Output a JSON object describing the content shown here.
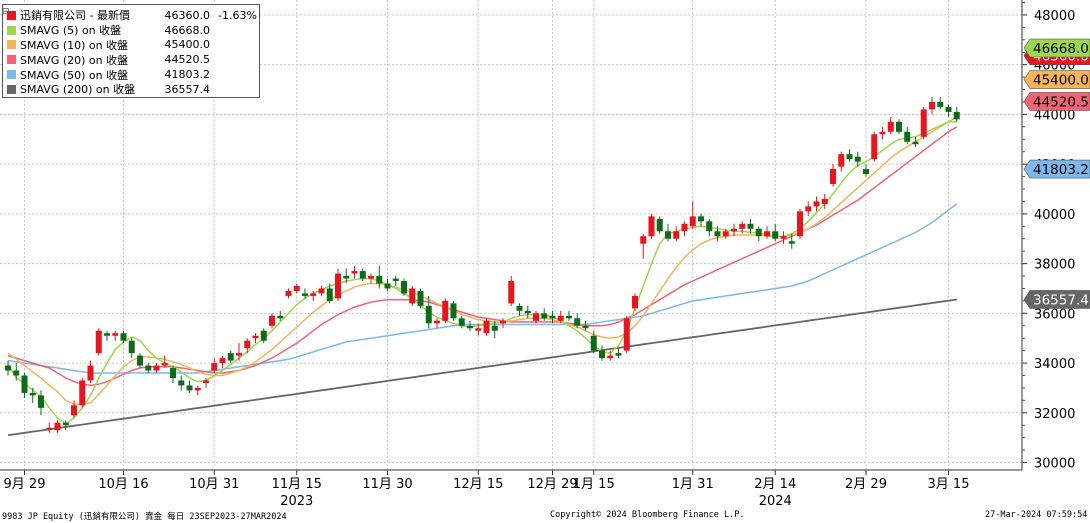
{
  "legend": {
    "rows": [
      {
        "name": "迅銷有限公司 - 最新價",
        "value": "46360.0",
        "change": "-1.63%",
        "color": "#e8141e"
      },
      {
        "name": "SMAVG (5)  on 收盤",
        "value": "46668.0",
        "color": "#9bd84a"
      },
      {
        "name": "SMAVG (10)  on 收盤",
        "value": "45400.0",
        "color": "#f5b45a"
      },
      {
        "name": "SMAVG (20)  on 收盤",
        "value": "44520.5",
        "color": "#f06476"
      },
      {
        "name": "SMAVG (50)  on 收盤",
        "value": "41803.2",
        "color": "#7ab8ee"
      },
      {
        "name": "SMAVG (200)  on 收盤",
        "value": "36557.4",
        "color": "#666666"
      }
    ]
  },
  "footer": {
    "left": "9983 JP Equity (迅銷有限公司) 賣金  每日 23SEP2023-27MAR2024",
    "center": "Copyright© 2024 Bloomberg Finance L.P.",
    "right": "27-Mar-2024 07:59:54"
  },
  "chart_data": {
    "type": "candlestick",
    "ylim": [
      29700,
      48600
    ],
    "y_ticks": [
      30000,
      32000,
      34000,
      36000,
      38000,
      40000,
      42000,
      44000,
      46000,
      48000
    ],
    "x_ticks": [
      {
        "label": "9月 29",
        "day": 2
      },
      {
        "label": "10月 16",
        "day": 14
      },
      {
        "label": "10月 31",
        "day": 25
      },
      {
        "label": "11月 15",
        "day": 35
      },
      {
        "label": "11月 30",
        "day": 46
      },
      {
        "label": "12月 15",
        "day": 57
      },
      {
        "label": "12月 29",
        "day": 66
      },
      {
        "label": "1月 15",
        "day": 71
      },
      {
        "label": "1月 31",
        "day": 83
      },
      {
        "label": "2月 14",
        "day": 93
      },
      {
        "label": "2月 29",
        "day": 104
      },
      {
        "label": "3月 15",
        "day": 114
      }
    ],
    "year_labels": [
      {
        "label": "2023",
        "day": 35
      },
      {
        "label": "2024",
        "day": 93
      }
    ],
    "price_tags": [
      {
        "label": "46360.0",
        "value": 46360,
        "bg": "#e8141e",
        "fg": "#ffffff"
      },
      {
        "label": "46668.0",
        "value": 46668,
        "bg": "#9bd84a",
        "fg": "#000000"
      },
      {
        "label": "45400.0",
        "value": 45400,
        "bg": "#f5b45a",
        "fg": "#000000"
      },
      {
        "label": "44520.5",
        "value": 44520,
        "bg": "#f06476",
        "fg": "#000000"
      },
      {
        "label": "41803.2",
        "value": 41803,
        "bg": "#7ab8ee",
        "fg": "#000000"
      },
      {
        "label": "36557.4",
        "value": 36557,
        "bg": "#666666",
        "fg": "#ffffff"
      }
    ],
    "candles": [
      [
        33900,
        34100,
        33500,
        33700
      ],
      [
        33700,
        34000,
        33300,
        33500
      ],
      [
        33500,
        33600,
        32600,
        32800
      ],
      [
        32800,
        33000,
        32400,
        32700
      ],
      [
        32700,
        32900,
        31900,
        32200
      ],
      [
        31400,
        31600,
        31200,
        31400
      ],
      [
        31300,
        31700,
        31200,
        31600
      ],
      [
        31600,
        31700,
        31300,
        31500
      ],
      [
        31900,
        32500,
        31800,
        32300
      ],
      [
        32300,
        33400,
        32200,
        33300
      ],
      [
        33300,
        34100,
        33200,
        33900
      ],
      [
        34400,
        35400,
        34300,
        35300
      ],
      [
        35200,
        35300,
        34900,
        35100
      ],
      [
        35100,
        35300,
        34900,
        35200
      ],
      [
        35200,
        35300,
        34800,
        34900
      ],
      [
        34900,
        35000,
        34200,
        34400
      ],
      [
        34300,
        34400,
        33800,
        33900
      ],
      [
        33900,
        34000,
        33600,
        33700
      ],
      [
        33700,
        34000,
        33600,
        33900
      ],
      [
        33900,
        34300,
        33800,
        34000
      ],
      [
        33800,
        33900,
        33200,
        33400
      ],
      [
        33300,
        33500,
        32900,
        33100
      ],
      [
        33100,
        33300,
        32800,
        32900
      ],
      [
        32900,
        33100,
        32700,
        33000
      ],
      [
        33200,
        33400,
        33000,
        33300
      ],
      [
        33700,
        34200,
        33600,
        34000
      ],
      [
        34000,
        34300,
        33800,
        34200
      ],
      [
        34400,
        34500,
        34000,
        34100
      ],
      [
        34300,
        34800,
        34100,
        34400
      ],
      [
        34600,
        35000,
        34400,
        34900
      ],
      [
        35000,
        35200,
        34800,
        35100
      ],
      [
        35300,
        35400,
        34800,
        34900
      ],
      [
        35500,
        36000,
        35400,
        35900
      ],
      [
        35900,
        36100,
        35700,
        35800
      ],
      [
        36700,
        37000,
        36600,
        36900
      ],
      [
        36900,
        37200,
        36800,
        37100
      ],
      [
        36800,
        37000,
        36600,
        36700
      ],
      [
        36700,
        36900,
        36500,
        36800
      ],
      [
        36800,
        37100,
        36700,
        37000
      ],
      [
        37000,
        37200,
        36400,
        36500
      ],
      [
        36600,
        37800,
        36500,
        37600
      ],
      [
        37500,
        37800,
        37200,
        37400
      ],
      [
        37600,
        37900,
        37400,
        37700
      ],
      [
        37700,
        37800,
        37300,
        37400
      ],
      [
        37400,
        37600,
        37200,
        37500
      ],
      [
        37500,
        37900,
        37000,
        37200
      ],
      [
        37200,
        37400,
        36900,
        37000
      ],
      [
        37400,
        37500,
        37100,
        37300
      ],
      [
        37300,
        37400,
        36700,
        36800
      ],
      [
        36400,
        37100,
        36300,
        37000
      ],
      [
        36900,
        37000,
        36200,
        36300
      ],
      [
        36300,
        36700,
        35400,
        35600
      ],
      [
        35600,
        35800,
        35400,
        35700
      ],
      [
        35700,
        36600,
        35600,
        36500
      ],
      [
        36400,
        36500,
        35700,
        35800
      ],
      [
        35800,
        35900,
        35400,
        35500
      ],
      [
        35500,
        35700,
        35300,
        35400
      ],
      [
        35300,
        35600,
        35100,
        35400
      ],
      [
        35200,
        35800,
        35100,
        35700
      ],
      [
        35500,
        35700,
        35000,
        35300
      ],
      [
        35600,
        35800,
        35400,
        35700
      ],
      [
        36400,
        37500,
        36300,
        37300
      ],
      [
        36300,
        36400,
        35900,
        36100
      ],
      [
        36100,
        36300,
        35800,
        36000
      ],
      [
        35700,
        36100,
        35600,
        36000
      ],
      [
        36000,
        36200,
        35700,
        35800
      ],
      [
        35900,
        36100,
        35600,
        35800
      ],
      [
        35700,
        36100,
        35600,
        35900
      ],
      [
        35900,
        36100,
        35700,
        35800
      ],
      [
        35800,
        36000,
        35400,
        35500
      ],
      [
        35500,
        35700,
        35300,
        35400
      ],
      [
        35100,
        35300,
        34400,
        34500
      ],
      [
        34500,
        34700,
        34100,
        34200
      ],
      [
        34200,
        34500,
        34100,
        34300
      ],
      [
        34400,
        34600,
        34200,
        34300
      ],
      [
        34500,
        35900,
        34400,
        35800
      ],
      [
        36200,
        36800,
        36100,
        36700
      ],
      [
        38800,
        39200,
        38200,
        39100
      ],
      [
        39100,
        40000,
        39000,
        39900
      ],
      [
        39800,
        39900,
        39200,
        39300
      ],
      [
        39300,
        39600,
        38900,
        39000
      ],
      [
        39000,
        39500,
        38900,
        39300
      ],
      [
        39300,
        39700,
        39100,
        39600
      ],
      [
        39500,
        40500,
        39400,
        39900
      ],
      [
        39900,
        40000,
        39500,
        39700
      ],
      [
        39700,
        39800,
        39100,
        39300
      ],
      [
        39300,
        39500,
        38900,
        39100
      ],
      [
        39100,
        39400,
        39000,
        39300
      ],
      [
        39300,
        39600,
        39100,
        39400
      ],
      [
        39400,
        39700,
        39200,
        39600
      ],
      [
        39600,
        39800,
        39200,
        39400
      ],
      [
        39400,
        39500,
        38900,
        39100
      ],
      [
        39100,
        39500,
        39000,
        39300
      ],
      [
        39300,
        39600,
        38900,
        39000
      ],
      [
        39000,
        39300,
        38800,
        39100
      ],
      [
        38900,
        39200,
        38600,
        38800
      ],
      [
        39100,
        40200,
        39000,
        40100
      ],
      [
        40100,
        40500,
        39900,
        40300
      ],
      [
        40300,
        40700,
        40100,
        40500
      ],
      [
        40400,
        40800,
        40200,
        40600
      ],
      [
        41200,
        42000,
        41100,
        41800
      ],
      [
        41900,
        42500,
        41700,
        42400
      ],
      [
        42400,
        42600,
        42100,
        42200
      ],
      [
        42300,
        42500,
        41900,
        42100
      ],
      [
        41800,
        42000,
        41500,
        41600
      ],
      [
        42200,
        43300,
        42100,
        43200
      ],
      [
        43200,
        43500,
        43000,
        43300
      ],
      [
        43300,
        43900,
        43200,
        43700
      ],
      [
        43700,
        43800,
        43200,
        43300
      ],
      [
        43300,
        43500,
        42800,
        42900
      ],
      [
        42900,
        43100,
        42700,
        42800
      ],
      [
        43100,
        44300,
        43000,
        44200
      ],
      [
        44200,
        44700,
        44000,
        44500
      ],
      [
        44500,
        44700,
        44200,
        44300
      ],
      [
        44300,
        44400,
        43900,
        44100
      ],
      [
        44100,
        44300,
        43700,
        43800
      ]
    ],
    "ma5": [
      33950,
      33400,
      33200,
      32900,
      32650,
      32200,
      31800,
      31550,
      31800,
      32200,
      32700,
      33400,
      34000,
      34550,
      34850,
      35050,
      34900,
      34500,
      34200,
      34000,
      33850,
      33650,
      33400,
      33250,
      33300,
      33500,
      33700,
      33950,
      34200,
      34450,
      34750,
      35000,
      35300,
      35650,
      36000,
      36350,
      36600,
      36800,
      36950,
      37100,
      37200,
      37300,
      37350,
      37400,
      37400,
      37300,
      37150,
      37000,
      36800,
      36600,
      36300,
      36050,
      35850,
      35700,
      35600,
      35500,
      35450,
      35500,
      35550,
      35600,
      35650,
      35800,
      35900,
      35950,
      35950,
      35950,
      35850,
      35700,
      35500,
      35300,
      35000,
      34700,
      34450,
      34400,
      34700,
      35300,
      36200,
      37100,
      38000,
      38800,
      39200,
      39300,
      39400,
      39450,
      39500,
      39450,
      39400,
      39350,
      39300,
      39300,
      39250,
      39250,
      39150,
      39100,
      39100,
      39200,
      39400,
      39700,
      40050,
      40400,
      40800,
      41250,
      41650,
      41950,
      42100,
      42300,
      42550,
      42800,
      43000,
      43050,
      43100,
      43250,
      43400,
      43550,
      43700,
      43700
    ],
    "ma10": [
      34400,
      34150,
      33900,
      33650,
      33400,
      33100,
      32850,
      32500,
      32350,
      32350,
      32400,
      32750,
      33100,
      33500,
      33850,
      34100,
      34250,
      34250,
      34200,
      34150,
      34050,
      33950,
      33800,
      33650,
      33550,
      33500,
      33500,
      33600,
      33700,
      33850,
      34050,
      34300,
      34550,
      34850,
      35150,
      35450,
      35750,
      36050,
      36300,
      36550,
      36750,
      36900,
      37050,
      37150,
      37200,
      37200,
      37150,
      37050,
      36950,
      36850,
      36700,
      36550,
      36400,
      36250,
      36100,
      35950,
      35850,
      35750,
      35700,
      35650,
      35650,
      35700,
      35750,
      35800,
      35800,
      35800,
      35750,
      35650,
      35550,
      35450,
      35300,
      35150,
      35050,
      35000,
      35050,
      35200,
      35500,
      35900,
      36400,
      36900,
      37400,
      37850,
      38250,
      38550,
      38800,
      38950,
      39050,
      39100,
      39150,
      39150,
      39150,
      39150,
      39100,
      39100,
      39100,
      39150,
      39250,
      39400,
      39600,
      39850,
      40150,
      40450,
      40750,
      41050,
      41350,
      41650,
      41950,
      42250,
      42500,
      42700,
      42900,
      43100,
      43300,
      43500,
      43700,
      43900
    ],
    "ma20": [
      34300,
      34200,
      34100,
      34000,
      33900,
      33800,
      33600,
      33400,
      33250,
      33150,
      33100,
      33150,
      33250,
      33400,
      33550,
      33700,
      33800,
      33850,
      33850,
      33850,
      33850,
      33800,
      33750,
      33700,
      33650,
      33600,
      33600,
      33650,
      33700,
      33800,
      33900,
      34050,
      34200,
      34400,
      34600,
      34800,
      35050,
      35300,
      35550,
      35750,
      35950,
      36100,
      36250,
      36350,
      36450,
      36500,
      36550,
      36550,
      36550,
      36550,
      36500,
      36450,
      36350,
      36250,
      36150,
      36050,
      35950,
      35850,
      35800,
      35750,
      35700,
      35650,
      35650,
      35650,
      35650,
      35650,
      35650,
      35650,
      35600,
      35550,
      35500,
      35500,
      35500,
      35550,
      35650,
      35800,
      35950,
      36150,
      36350,
      36550,
      36750,
      36950,
      37150,
      37300,
      37450,
      37600,
      37750,
      37900,
      38050,
      38200,
      38350,
      38500,
      38650,
      38800,
      38950,
      39100,
      39250,
      39400,
      39550,
      39750,
      39950,
      40150,
      40350,
      40550,
      40800,
      41050,
      41300,
      41550,
      41800,
      42050,
      42300,
      42550,
      42800,
      43050,
      43300,
      43500
    ],
    "ma50": [
      34100,
      34050,
      34000,
      33950,
      33900,
      33850,
      33800,
      33750,
      33700,
      33650,
      33600,
      33600,
      33600,
      33600,
      33600,
      33600,
      33600,
      33600,
      33600,
      33600,
      33600,
      33600,
      33600,
      33600,
      33650,
      33700,
      33750,
      33800,
      33850,
      33900,
      33950,
      34000,
      34050,
      34100,
      34150,
      34250,
      34350,
      34450,
      34550,
      34650,
      34750,
      34850,
      34900,
      34950,
      35000,
      35050,
      35100,
      35150,
      35200,
      35250,
      35300,
      35350,
      35400,
      35450,
      35500,
      35550,
      35550,
      35550,
      35550,
      35550,
      35550,
      35550,
      35550,
      35550,
      35550,
      35550,
      35550,
      35550,
      35550,
      35550,
      35550,
      35600,
      35650,
      35700,
      35750,
      35800,
      35850,
      35900,
      36000,
      36100,
      36200,
      36300,
      36400,
      36500,
      36550,
      36600,
      36650,
      36700,
      36750,
      36800,
      36850,
      36900,
      36950,
      37000,
      37050,
      37100,
      37200,
      37300,
      37450,
      37600,
      37750,
      37900,
      38050,
      38200,
      38350,
      38500,
      38650,
      38800,
      38950,
      39100,
      39250,
      39450,
      39650,
      39900,
      40150,
      40400
    ]
  }
}
